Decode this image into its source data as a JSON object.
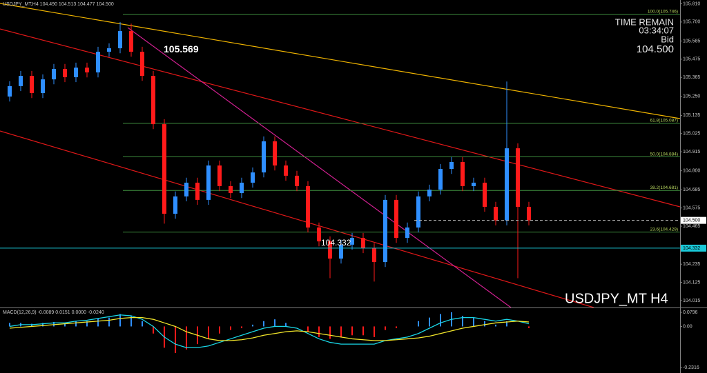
{
  "chart_data": [
    {
      "type": "candlestick",
      "title": "USDJPY_MT,H4 104.490 104.513 104.477 104.500",
      "watermark": "USDJPY_MT H4",
      "timer_label": "TIME REMAIN",
      "timer": "03:34:07",
      "bid_label": "Bid",
      "bid": {
        "value": 104.5,
        "label": "104.500"
      },
      "up_color": "#2f8fff",
      "down_color": "#ff1a1a",
      "open": [
        105.249,
        105.312,
        105.374,
        105.27,
        105.353,
        105.416,
        105.366,
        105.424,
        105.395,
        105.52,
        105.541,
        105.645,
        105.52,
        105.374,
        105.082,
        104.54,
        104.645,
        104.728,
        104.624,
        104.832,
        104.707,
        104.665,
        104.728,
        104.79,
        104.978,
        104.832,
        104.77,
        104.707,
        104.457,
        104.373,
        104.269,
        104.353,
        104.394,
        104.332,
        104.248,
        104.624,
        104.394,
        104.457,
        104.645,
        104.686,
        104.811,
        104.853,
        104.707,
        104.728,
        104.582,
        104.5,
        104.936,
        104.582
      ],
      "high": [
        105.342,
        105.404,
        105.404,
        105.383,
        105.446,
        105.446,
        105.454,
        105.454,
        105.55,
        105.571,
        105.7,
        105.69,
        105.55,
        105.404,
        105.112,
        104.675,
        104.758,
        104.758,
        104.862,
        104.862,
        104.737,
        104.758,
        104.82,
        105.008,
        105.008,
        104.862,
        104.8,
        104.737,
        104.487,
        104.403,
        104.383,
        104.424,
        104.424,
        104.362,
        104.654,
        104.654,
        104.487,
        104.675,
        104.716,
        104.841,
        104.883,
        104.883,
        104.758,
        104.758,
        104.612,
        105.34,
        104.966,
        104.612
      ],
      "low": [
        105.219,
        105.282,
        105.24,
        105.24,
        105.323,
        105.336,
        105.336,
        105.365,
        105.365,
        105.49,
        105.511,
        105.49,
        105.344,
        105.052,
        104.48,
        104.51,
        104.615,
        104.594,
        104.594,
        104.677,
        104.635,
        104.635,
        104.698,
        104.76,
        104.802,
        104.74,
        104.677,
        104.427,
        104.343,
        104.15,
        104.239,
        104.323,
        104.302,
        104.13,
        104.218,
        104.364,
        104.364,
        104.427,
        104.615,
        104.656,
        104.781,
        104.677,
        104.677,
        104.552,
        104.47,
        104.47,
        104.15,
        104.47
      ],
      "close": [
        105.312,
        105.374,
        105.27,
        105.353,
        105.416,
        105.366,
        105.424,
        105.395,
        105.52,
        105.541,
        105.645,
        105.52,
        105.374,
        105.082,
        104.54,
        104.645,
        104.728,
        104.624,
        104.832,
        104.707,
        104.665,
        104.728,
        104.79,
        104.978,
        104.832,
        104.77,
        104.707,
        104.457,
        104.373,
        104.269,
        104.353,
        104.394,
        104.332,
        104.248,
        104.624,
        104.394,
        104.457,
        104.645,
        104.686,
        104.811,
        104.853,
        104.707,
        104.728,
        104.582,
        104.5,
        104.936,
        104.582,
        104.5
      ],
      "ylim": [
        103.973,
        105.833
      ],
      "yticks": [
        {
          "value": 105.81,
          "label": "105.810"
        },
        {
          "value": 105.7,
          "label": "105.700"
        },
        {
          "value": 105.585,
          "label": "105.585"
        },
        {
          "value": 105.475,
          "label": "105.475"
        },
        {
          "value": 105.365,
          "label": "105.365"
        },
        {
          "value": 105.25,
          "label": "105.250"
        },
        {
          "value": 105.135,
          "label": "105.135"
        },
        {
          "value": 105.025,
          "label": "105.025"
        },
        {
          "value": 104.915,
          "label": "104.915"
        },
        {
          "value": 104.8,
          "label": "104.800"
        },
        {
          "value": 104.685,
          "label": "104.685"
        },
        {
          "value": 104.575,
          "label": "104.575"
        },
        {
          "value": 104.465,
          "label": "104.465"
        },
        {
          "value": 104.235,
          "label": "104.235"
        },
        {
          "value": 104.125,
          "label": "104.125"
        },
        {
          "value": 104.015,
          "label": "104.015"
        }
      ],
      "fib_color": "#3f8f3f",
      "fib_levels": [
        {
          "value": 105.746,
          "label": "100.0(105.746)"
        },
        {
          "value": 105.087,
          "label": "61.8(105.087)"
        },
        {
          "value": 104.884,
          "label": "50.0(104.884)"
        },
        {
          "value": 104.681,
          "label": "38.2(104.681)"
        },
        {
          "value": 104.429,
          "label": "23.6(104.429)"
        }
      ],
      "annotations": [
        {
          "value": 105.569,
          "label": "105.569"
        },
        {
          "value": 104.332,
          "label": "104.332"
        }
      ]
    },
    {
      "type": "macd",
      "title": "MACD(12,26,9) -0.0089 0.0151 0.0000 -0.0240",
      "pos_color": "#2f8fff",
      "neg_color": "#ff1a1a",
      "values": [
        0.02,
        0.02,
        0.015,
        0.02,
        0.025,
        0.02,
        0.03,
        0.03,
        0.045,
        0.05,
        0.07,
        0.06,
        0.03,
        -0.04,
        -0.12,
        -0.15,
        -0.13,
        -0.1,
        -0.07,
        -0.04,
        -0.02,
        -0.01,
        0.01,
        0.03,
        0.04,
        0.02,
        0.0,
        -0.03,
        -0.06,
        -0.07,
        -0.06,
        -0.05,
        -0.05,
        -0.06,
        -0.02,
        -0.01,
        0.0,
        0.03,
        0.05,
        0.07,
        0.08,
        0.06,
        0.05,
        0.03,
        0.01,
        0.03,
        0.0,
        -0.009
      ],
      "series": [
        {
          "color": "#19d6e6",
          "values": [
            0.0,
            0.01,
            0.01,
            0.015,
            0.02,
            0.02,
            0.03,
            0.035,
            0.045,
            0.055,
            0.065,
            0.06,
            0.04,
            0.0,
            -0.06,
            -0.1,
            -0.12,
            -0.12,
            -0.11,
            -0.09,
            -0.07,
            -0.05,
            -0.03,
            -0.01,
            0.0,
            0.0,
            -0.01,
            -0.04,
            -0.07,
            -0.09,
            -0.1,
            -0.1,
            -0.1,
            -0.1,
            -0.08,
            -0.07,
            -0.06,
            -0.04,
            -0.01,
            0.02,
            0.04,
            0.05,
            0.05,
            0.04,
            0.03,
            0.04,
            0.03,
            0.015
          ]
        },
        {
          "color": "#f2e62a",
          "values": [
            -0.01,
            -0.005,
            0.0,
            0.005,
            0.01,
            0.015,
            0.02,
            0.025,
            0.03,
            0.035,
            0.045,
            0.05,
            0.05,
            0.04,
            0.02,
            0.0,
            -0.03,
            -0.05,
            -0.07,
            -0.08,
            -0.08,
            -0.075,
            -0.065,
            -0.05,
            -0.04,
            -0.03,
            -0.025,
            -0.03,
            -0.04,
            -0.05,
            -0.06,
            -0.07,
            -0.075,
            -0.08,
            -0.08,
            -0.075,
            -0.07,
            -0.065,
            -0.055,
            -0.04,
            -0.025,
            -0.01,
            0.0,
            0.01,
            0.02,
            0.025,
            0.03,
            0.025
          ]
        }
      ],
      "ylim": [
        -0.263,
        0.103
      ],
      "yticks": [
        0.0796,
        {
          "value": 0,
          "label": "0.00"
        },
        -0.2316
      ]
    }
  ]
}
